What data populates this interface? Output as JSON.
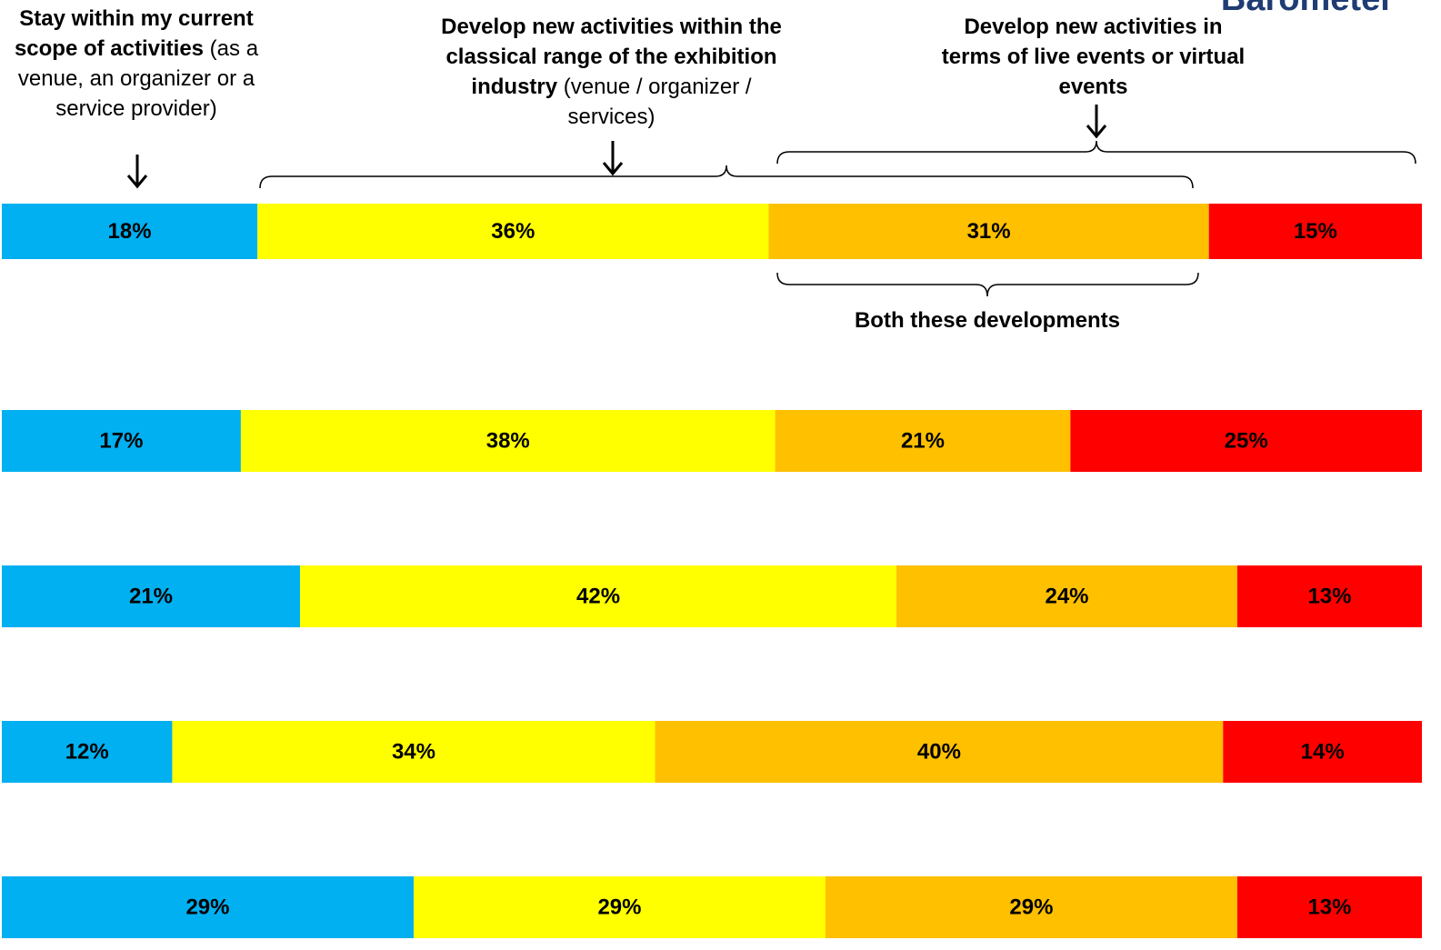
{
  "logo_text": "Barometer",
  "annotations": {
    "stay": {
      "bold": "Stay within my current scope of activities",
      "normal": " (as a venue, an organizer or a service provider)"
    },
    "classical": {
      "bold": "Develop new activities within the classical range of the exhibition industry",
      "normal": " (venue / organizer / services)"
    },
    "live_virtual": {
      "bold": "Develop new activities in terms of live events or virtual events",
      "normal": ""
    },
    "both": {
      "bold": "Both these developments",
      "normal": ""
    }
  },
  "colors": {
    "stay": "#00b0f0",
    "classical": "#ffff00",
    "both": "#ffc000",
    "live_virtual": "#ff0000"
  },
  "chart_data": {
    "type": "bar",
    "orientation": "horizontal",
    "stacked": true,
    "percent": true,
    "categories": [
      "",
      "",
      "",
      "",
      ""
    ],
    "series": [
      {
        "name": "Stay within my current scope of activities",
        "color": "#00b0f0",
        "values": [
          18,
          17,
          21,
          12,
          29
        ]
      },
      {
        "name": "Develop new activities within the classical range of the exhibition industry",
        "color": "#ffff00",
        "values": [
          36,
          38,
          42,
          34,
          29
        ]
      },
      {
        "name": "Both these developments",
        "color": "#ffc000",
        "values": [
          31,
          21,
          24,
          40,
          29
        ]
      },
      {
        "name": "Develop new activities in terms of live events or virtual events",
        "color": "#ff0000",
        "values": [
          15,
          25,
          13,
          14,
          13
        ]
      }
    ],
    "data_labels": [
      [
        "18%",
        "36%",
        "31%",
        "15%"
      ],
      [
        "17%",
        "38%",
        "21%",
        "25%"
      ],
      [
        "21%",
        "42%",
        "24%",
        "13%"
      ],
      [
        "12%",
        "34%",
        "40%",
        "14%"
      ],
      [
        "29%",
        "29%",
        "29%",
        "13%"
      ]
    ],
    "xlim": [
      0,
      100
    ],
    "grid": false,
    "legend": "none"
  }
}
